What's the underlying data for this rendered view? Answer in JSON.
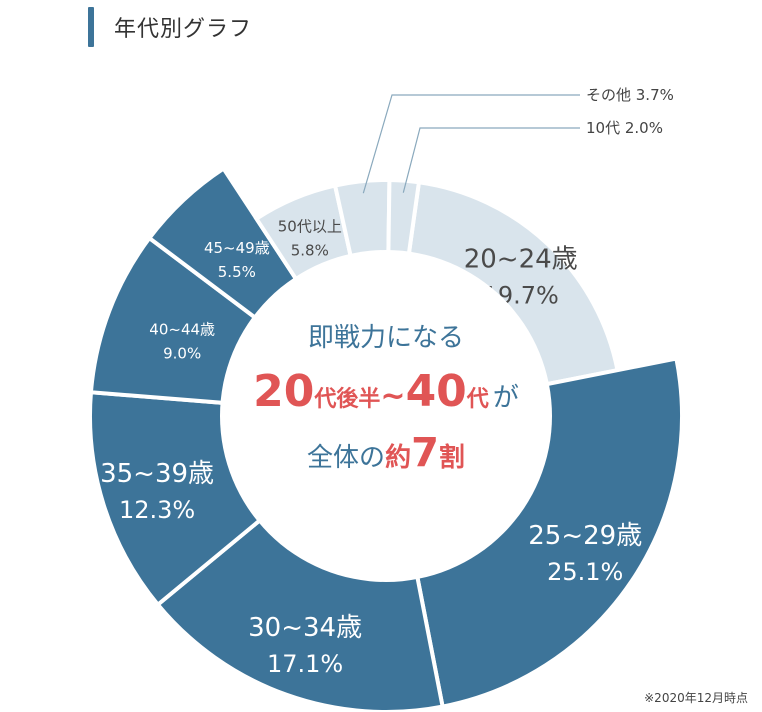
{
  "header": {
    "title": "年代別グラフ"
  },
  "center": {
    "line1": "即戦力になる",
    "line2_a": "20",
    "line2_b": "代後半",
    "line2_c": "~",
    "line2_d": "40",
    "line2_e": "代",
    "line2_f": "が",
    "line3_a": "全体の",
    "line3_b": "約",
    "line3_c": "7",
    "line3_d": "割"
  },
  "footnote": "※2020年12月時点",
  "colors": {
    "dark": "#3d7499",
    "light": "#d9e4ec",
    "accent": "#e05555",
    "center_text": "#3d7499"
  },
  "chart_data": {
    "type": "pie",
    "style": "donut",
    "segments": [
      {
        "label": "20~24歳",
        "value": 19.7,
        "value_label": "19.7%",
        "tone": "light"
      },
      {
        "label": "25~29歳",
        "value": 25.1,
        "value_label": "25.1%",
        "tone": "dark"
      },
      {
        "label": "30~34歳",
        "value": 17.1,
        "value_label": "17.1%",
        "tone": "dark"
      },
      {
        "label": "35~39歳",
        "value": 12.3,
        "value_label": "12.3%",
        "tone": "dark"
      },
      {
        "label": "40~44歳",
        "value": 9.0,
        "value_label": "9.0%",
        "tone": "dark"
      },
      {
        "label": "45~49歳",
        "value": 5.5,
        "value_label": "5.5%",
        "tone": "dark"
      },
      {
        "label": "50代以上",
        "value": 5.8,
        "value_label": "5.8%",
        "tone": "light"
      },
      {
        "label": "その他",
        "value": 3.7,
        "value_label": "3.7%",
        "tone": "light"
      },
      {
        "label": "10代",
        "value": 2.0,
        "value_label": "2.0%",
        "tone": "light"
      }
    ]
  }
}
